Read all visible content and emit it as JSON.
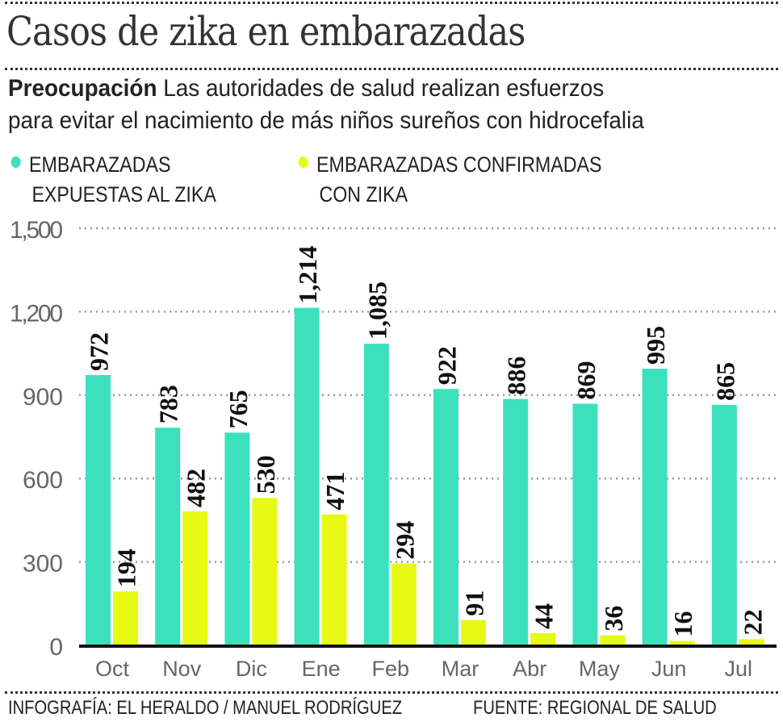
{
  "header": {
    "title": "Casos de zika en embarazadas",
    "subtitle_lead": "Preocupación",
    "subtitle_line1": " Las autoridades de salud realizan esfuerzos",
    "subtitle_line2": "para evitar el nacimiento de más niños sureños con hidrocefalia"
  },
  "colors": {
    "exposed": "#3de0bd",
    "confirmed": "#e6fa14",
    "axis": "#111111",
    "grid": "#999999",
    "tick_text": "#666666"
  },
  "legend": [
    {
      "line1": "EMBARAZADAS",
      "line2": "EXPUESTAS AL ZIKA",
      "color_key": "exposed"
    },
    {
      "line1": "EMBARAZADAS CONFIRMADAS",
      "line2": "CON ZIKA",
      "color_key": "confirmed"
    }
  ],
  "chart_data": {
    "type": "bar",
    "title": "Casos de zika en embarazadas",
    "xlabel": "",
    "ylabel": "",
    "categories": [
      "Oct",
      "Nov",
      "Dic",
      "Ene",
      "Feb",
      "Mar",
      "Abr",
      "May",
      "Jun",
      "Jul"
    ],
    "series": [
      {
        "name": "EMBARAZADAS EXPUESTAS AL ZIKA",
        "values": [
          972,
          783,
          765,
          1214,
          1085,
          922,
          886,
          869,
          995,
          865
        ]
      },
      {
        "name": "EMBARAZADAS CONFIRMADAS CON ZIKA",
        "values": [
          194,
          482,
          530,
          471,
          294,
          91,
          44,
          36,
          16,
          22
        ]
      }
    ],
    "value_labels": [
      [
        "972",
        "783",
        "765",
        "1,214",
        "1,085",
        "922",
        "886",
        "869",
        "995",
        "865"
      ],
      [
        "194",
        "482",
        "530",
        "471",
        "294",
        "91",
        "44",
        "36",
        "16",
        "22"
      ]
    ],
    "ylim": [
      0,
      1500
    ],
    "yticks": [
      0,
      300,
      600,
      900,
      1200,
      1500
    ],
    "ytick_labels": [
      "0",
      "300",
      "600",
      "900",
      "1,200",
      "1,500"
    ],
    "grid": true,
    "legend_position": "top-left"
  },
  "footer": {
    "credit": "INFOGRAFÍA: EL HERALDO / MANUEL RODRÍGUEZ",
    "source": "FUENTE: REGIONAL DE SALUD"
  }
}
